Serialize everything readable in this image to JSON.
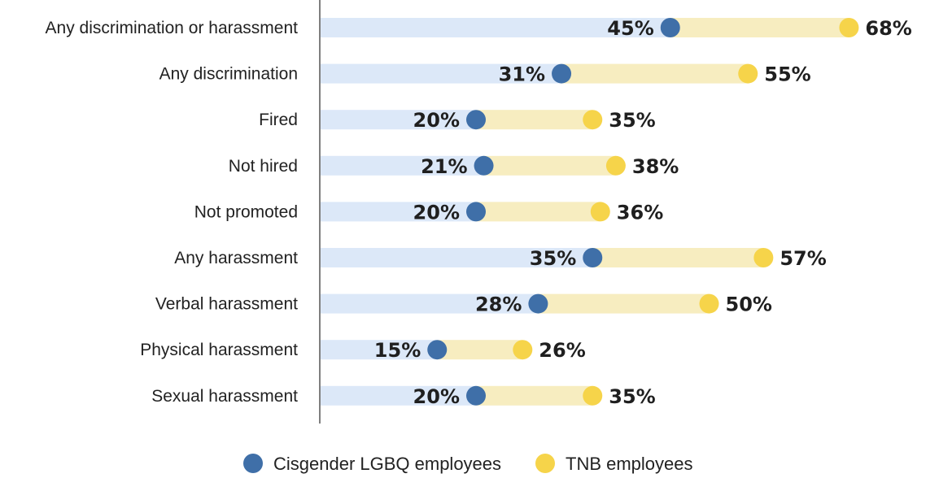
{
  "chart_data": {
    "type": "dot",
    "categories": [
      "Any discrimination or harassment",
      "Any discrimination",
      "Fired",
      "Not hired",
      "Not promoted",
      "Any harassment",
      "Verbal harassment",
      "Physical harassment",
      "Sexual harassment"
    ],
    "series": [
      {
        "name": "Cisgender LGBQ employees",
        "color": "#3f6fa8",
        "values": [
          45,
          31,
          20,
          21,
          20,
          35,
          28,
          15,
          20
        ],
        "labels": [
          "45%",
          "31%",
          "20%",
          "21%",
          "20%",
          "35%",
          "28%",
          "15%",
          "20%"
        ]
      },
      {
        "name": "TNB employees",
        "color": "#f6d44a",
        "values": [
          68,
          55,
          35,
          38,
          36,
          57,
          50,
          26,
          35
        ],
        "labels": [
          "68%",
          "55%",
          "35%",
          "38%",
          "36%",
          "57%",
          "50%",
          "26%",
          "35%"
        ]
      }
    ],
    "xlim": [
      0,
      100
    ],
    "grid": false,
    "legend_position": "bottom",
    "colors": {
      "track_lower": "#dce8f8",
      "track_upper": "#f7edc0",
      "axis": "#555555"
    }
  }
}
